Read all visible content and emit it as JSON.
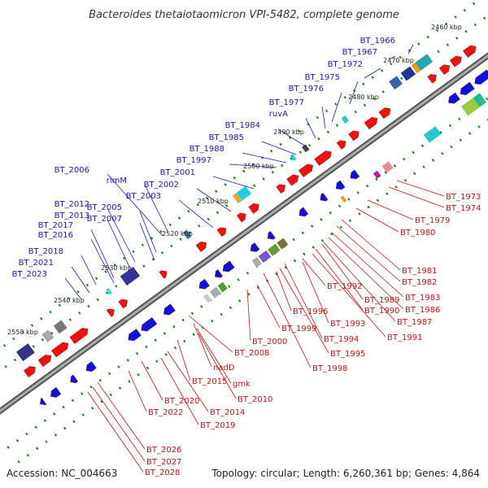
{
  "title": "Bacteroides thetaiotaomicron VPI-5482, complete genome",
  "footer": {
    "accession": "Accession: NC_004663",
    "summary": "Topology: circular; Length: 6,260,361 bp; Genes: 4,864"
  },
  "colors": {
    "forward_gene": "#1010dd",
    "reverse_gene": "#ee1111",
    "backbone": "#777777",
    "tick": "#118811"
  },
  "scale_labels": [
    "2460 kbp",
    "2470 kbp",
    "2480 kbp",
    "2490 kbp",
    "2500 kbp",
    "2510 kbp",
    "2520 kbp",
    "2530 kbp",
    "2540 kbp",
    "2550 kbp"
  ],
  "forward_labels": [
    "BT_1966",
    "BT_1967",
    "BT_1972",
    "BT_1975",
    "BT_1976",
    "BT_1977",
    "ruvA",
    "BT_1984",
    "BT_1985",
    "BT_1988",
    "BT_1997",
    "BT_2001",
    "BT_2002",
    "BT_2003",
    "BT_2006",
    "rimM",
    "BT_2005",
    "BT_2012",
    "BT_2013",
    "BT_2007",
    "BT_2017",
    "BT_2016",
    "BT_2018",
    "BT_2021",
    "BT_2023"
  ],
  "reverse_labels": [
    "BT_1973",
    "BT_1974",
    "BT_1979",
    "BT_1980",
    "BT_1981",
    "BT_1982",
    "BT_1983",
    "BT_1986",
    "BT_1987",
    "BT_1989",
    "BT_1990",
    "BT_1991",
    "BT_1992",
    "BT_1993",
    "BT_1994",
    "BT_1995",
    "BT_1996",
    "BT_1998",
    "BT_1999",
    "BT_2000",
    "BT_2008",
    "nadD",
    "gmk",
    "BT_2010",
    "BT_2015",
    "BT_2014",
    "BT_2019",
    "BT_2020",
    "BT_2022",
    "BT_2026",
    "BT_2027",
    "BT_2028"
  ]
}
